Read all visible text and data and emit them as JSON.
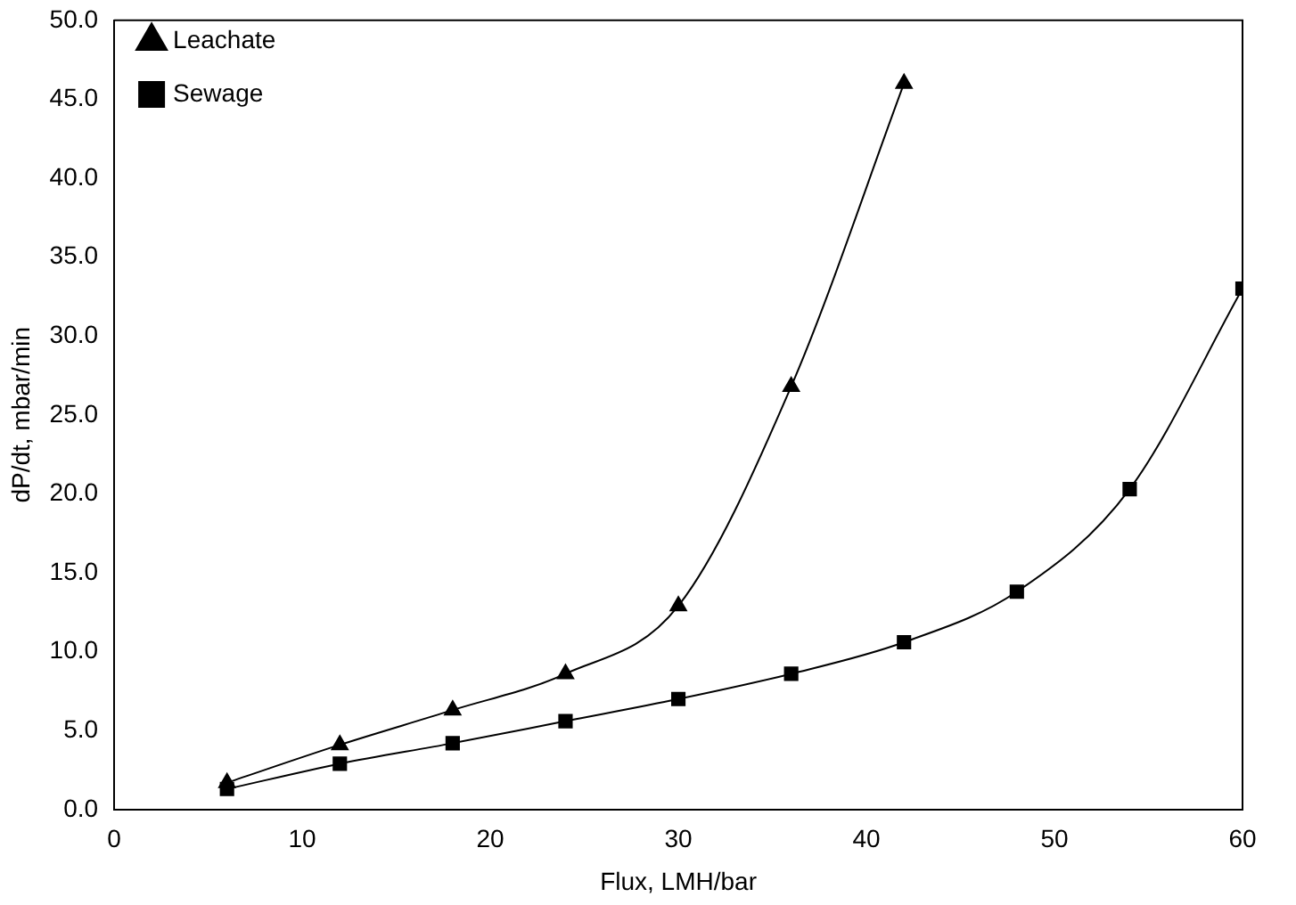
{
  "chart_data": {
    "type": "line",
    "xlabel": "Flux, LMH/bar",
    "ylabel": "dP/dt, mbar/min",
    "xlim": [
      0,
      60
    ],
    "xticks": [
      0,
      10,
      20,
      30,
      40,
      50,
      60
    ],
    "ylim": [
      0,
      50
    ],
    "yticks": [
      {
        "value": 0,
        "label": "0.0"
      },
      {
        "value": 5,
        "label": "5.0"
      },
      {
        "value": 10,
        "label": "10.0"
      },
      {
        "value": 15,
        "label": "15.0"
      },
      {
        "value": 20,
        "label": "20.0"
      },
      {
        "value": 25,
        "label": "25.0"
      },
      {
        "value": 30,
        "label": "30.0"
      },
      {
        "value": 35,
        "label": "35.0"
      },
      {
        "value": 40,
        "label": "40.0"
      },
      {
        "value": 45,
        "label": "45.0"
      },
      {
        "value": 50,
        "label": "50.0"
      }
    ],
    "grid": false,
    "legend": "top left",
    "line_style": "solid",
    "series": [
      {
        "name": "Sewage",
        "color": "#000000",
        "marker": "square",
        "x": [
          6,
          12,
          18,
          24,
          30,
          36,
          42,
          48,
          54,
          60
        ],
        "values": [
          1.3,
          2.9,
          4.2,
          5.6,
          7.0,
          8.6,
          10.6,
          13.8,
          20.3,
          33.0
        ]
      },
      {
        "name": "Leachate",
        "color": "#000000",
        "marker": "triangle",
        "x": [
          6,
          12,
          18,
          24,
          30,
          36,
          42
        ],
        "values": [
          1.7,
          4.1,
          6.3,
          8.6,
          12.9,
          26.8,
          46.0
        ]
      }
    ]
  }
}
